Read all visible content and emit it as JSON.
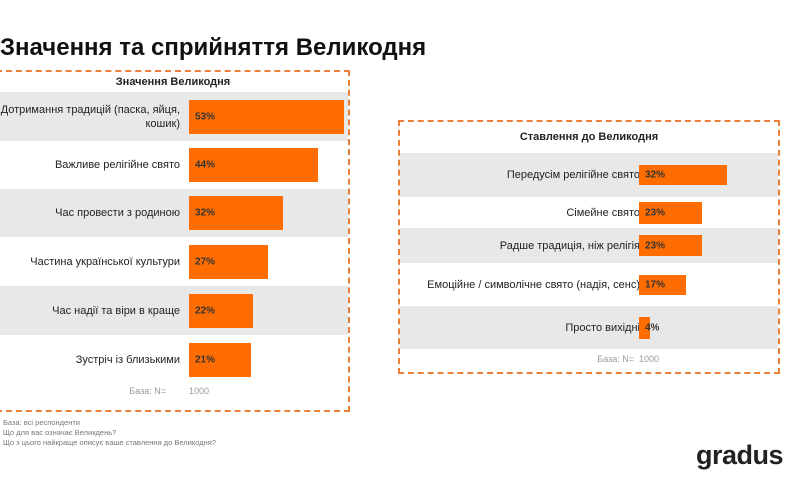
{
  "title": "Значення та сприйняття Великодня",
  "chart_data": [
    {
      "type": "bar",
      "orientation": "horizontal",
      "title": "Значення Великодня",
      "categories": [
        "Дотримання традицій (паска, яйця, кошик)",
        "Важливе релігійне свято",
        "Час провести з родиною",
        "Частина української культури",
        "Час надії та віри в краще",
        "Зустріч із близькими"
      ],
      "values": [
        53,
        44,
        32,
        27,
        22,
        21
      ],
      "labels": [
        "53%",
        "44%",
        "32%",
        "27%",
        "22%",
        "21%"
      ],
      "base_label": "База: N=",
      "base_value": "1000",
      "color": "#ff6d00"
    },
    {
      "type": "bar",
      "orientation": "horizontal",
      "title": "Ставлення до Великодня",
      "categories": [
        "Передусім релігійне свято",
        "Сімейне свято",
        "Радше традиція, ніж релігія",
        "Емоційне / символічне свято (надія, сенс)",
        "Просто вихідні"
      ],
      "values": [
        32,
        23,
        23,
        17,
        4
      ],
      "labels": [
        "32%",
        "23%",
        "23%",
        "17%",
        "4%"
      ],
      "base_label": "База: N=",
      "base_value": "1000",
      "color": "#ff6d00"
    }
  ],
  "footnotes": [
    "База: всі респонденти",
    "Що для вас означає Великдень?",
    "Що з цього найкраще описує ваше ставлення до Великодня?"
  ],
  "logo": "gradus"
}
